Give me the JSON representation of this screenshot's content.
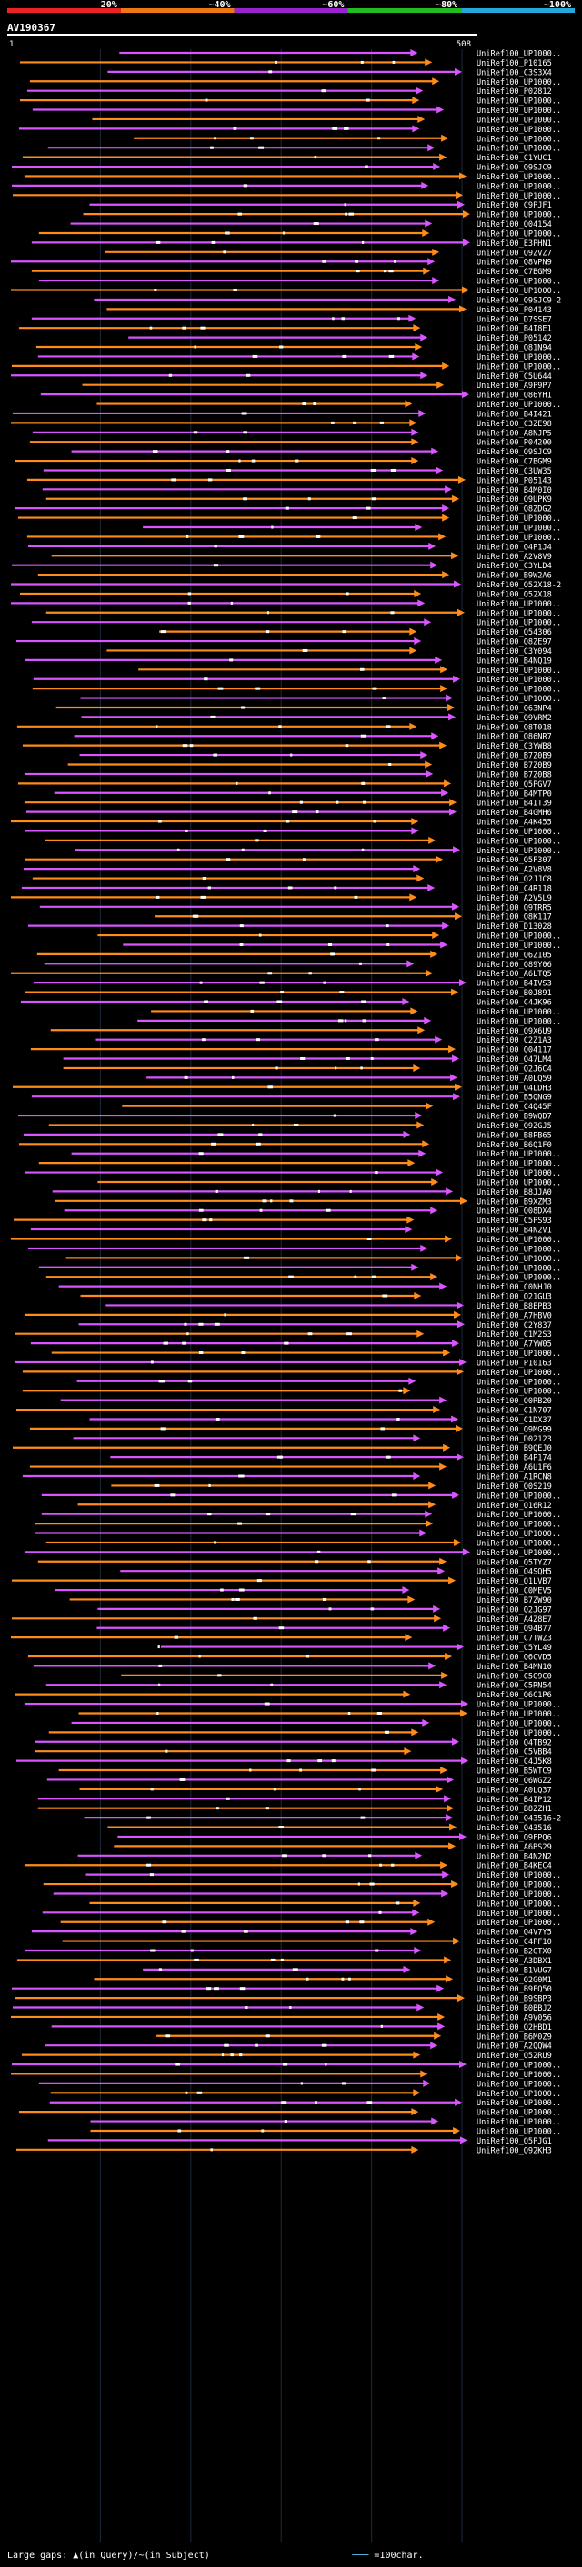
{
  "query_id": "AV190367",
  "chart_data": {
    "type": "alignment-overview",
    "query_length": 508,
    "axis_ticks": [
      "1",
      "508"
    ],
    "identity_legend": {
      "labels": [
        "20%",
        "~40%",
        "~60%",
        "~80%",
        "~100%"
      ],
      "colors": [
        "#ee2222",
        "#ee7711",
        "#9922cc",
        "#22bb22",
        "#22aadd"
      ]
    },
    "series_colors": {
      "orange": "#ff8c1a",
      "magenta": "#d855ff"
    },
    "hits": [
      "UniRef100_UP1000..",
      "UniRef100_P10165",
      "UniRef100_C3S3X4",
      "UniRef100_UP1000..",
      "UniRef100_P02812",
      "UniRef100_UP1000..",
      "UniRef100_UP1000..",
      "UniRef100_UP1000..",
      "UniRef100_UP1000..",
      "UniRef100_UP1000..",
      "UniRef100_UP1000..",
      "UniRef100_C1YUC1",
      "UniRef100_Q9SJC9",
      "UniRef100_UP1000..",
      "UniRef100_UP1000..",
      "UniRef100_UP1000..",
      "UniRef100_C9PJF1",
      "UniRef100_UP1000..",
      "UniRef100_Q04154",
      "UniRef100_UP1000..",
      "UniRef100_E3PHN1",
      "UniRef100_Q9ZVZ7",
      "UniRef100_Q8VPN9",
      "UniRef100_C7BGM9",
      "UniRef100_UP1000..",
      "UniRef100_UP1000..",
      "UniRef100_Q9SJC9-2",
      "UniRef100_P04143",
      "UniRef100_D7SSE7",
      "UniRef100_B4I8E1",
      "UniRef100_P05142",
      "UniRef100_Q81N94",
      "UniRef100_UP1000..",
      "UniRef100_UP1000..",
      "UniRef100_C5U644",
      "UniRef100_A9P9P7",
      "UniRef100_Q86YH1",
      "UniRef100_UP1000..",
      "UniRef100_B4I421",
      "UniRef100_C3ZE98",
      "UniRef100_A8NJP5",
      "UniRef100_P04200",
      "UniRef100_Q9SJC9",
      "UniRef100_C7BGM9",
      "UniRef100_C3UW35",
      "UniRef100_P05143",
      "UniRef100_B4M0I0",
      "UniRef100_Q9UPK9",
      "UniRef100_Q8ZDG2",
      "UniRef100_UP1000..",
      "UniRef100_UP1000..",
      "UniRef100_UP1000..",
      "UniRef100_Q4P1J4",
      "UniRef100_A2V8V9",
      "UniRef100_C3YLD4",
      "UniRef100_B9W2A6",
      "UniRef100_Q52X18-2",
      "UniRef100_Q52X18",
      "UniRef100_UP1000..",
      "UniRef100_UP1000..",
      "UniRef100_UP1000..",
      "UniRef100_Q54306",
      "UniRef100_Q8ZE97",
      "UniRef100_C3Y094",
      "UniRef100_B4NQ19",
      "UniRef100_UP1000..",
      "UniRef100_UP1000..",
      "UniRef100_UP1000..",
      "UniRef100_UP1000..",
      "UniRef100_Q63NP4",
      "UniRef100_Q9VRM2",
      "UniRef100_Q8T018",
      "UniRef100_Q86NR7",
      "UniRef100_C3YWB8",
      "UniRef100_B7Z0B9",
      "UniRef100_B7Z0B9",
      "UniRef100_B7Z0B8",
      "UniRef100_Q5PGV7",
      "UniRef100_B4MTP0",
      "UniRef100_B4IT39",
      "UniRef100_B4GMH6",
      "UniRef100_A4K455",
      "UniRef100_UP1000..",
      "UniRef100_UP1000..",
      "UniRef100_UP1000..",
      "UniRef100_Q5F307",
      "UniRef100_A2V8V8",
      "UniRef100_Q2JJC8",
      "UniRef100_C4R118",
      "UniRef100_A2V5L9",
      "UniRef100_Q9TRR5",
      "UniRef100_Q8K117",
      "UniRef100_D13028",
      "UniRef100_UP1000..",
      "UniRef100_UP1000..",
      "UniRef100_Q6Z105",
      "UniRef100_Q89Y06",
      "UniRef100_A6LTQ5",
      "UniRef100_B4IVS3",
      "UniRef100_B0J891",
      "UniRef100_C4JK96",
      "UniRef100_UP1000..",
      "UniRef100_UP1000..",
      "UniRef100_Q9X6U9",
      "UniRef100_C2Z1A3",
      "UniRef100_Q04117",
      "UniRef100_Q47LM4",
      "UniRef100_Q2J6C4",
      "UniRef100_A0LQ59",
      "UniRef100_Q4LDH3",
      "UniRef100_B5QNG9",
      "UniRef100_C4Q45F",
      "UniRef100_B9WQD7",
      "UniRef100_Q9ZGJ5",
      "UniRef100_B8PB65",
      "UniRef100_B6Q1F0",
      "UniRef100_UP1000..",
      "UniRef100_UP1000..",
      "UniRef100_UP1000..",
      "UniRef100_UP1000..",
      "UniRef100_B8JJA0",
      "UniRef100_B9XZM3",
      "UniRef100_Q08DX4",
      "UniRef100_C5PS93",
      "UniRef100_B4N2V1",
      "UniRef100_UP1000..",
      "UniRef100_UP1000..",
      "UniRef100_UP1000..",
      "UniRef100_UP1000..",
      "UniRef100_UP1000..",
      "UniRef100_C0NHJ0",
      "UniRef100_Q21GU3",
      "UniRef100_B8EPB3",
      "UniRef100_A7HBV0",
      "UniRef100_C2Y837",
      "UniRef100_C1M2S3",
      "UniRef100_A7YW05",
      "UniRef100_UP1000..",
      "UniRef100_P10163",
      "UniRef100_UP1000..",
      "UniRef100_UP1000..",
      "UniRef100_UP1000..",
      "UniRef100_Q0RB20",
      "UniRef100_C1N707",
      "UniRef100_C1DX37",
      "UniRef100_Q9MG99",
      "UniRef100_D02123",
      "UniRef100_B9QEJ0",
      "UniRef100_B4P174",
      "UniRef100_A6U1F6",
      "UniRef100_A1RCN8",
      "UniRef100_Q0S219",
      "UniRef100_UP1000..",
      "UniRef100_Q16R12",
      "UniRef100_UP1000..",
      "UniRef100_UP1000..",
      "UniRef100_UP1000..",
      "UniRef100_UP1000..",
      "UniRef100_UP1000..",
      "UniRef100_Q5TYZ7",
      "UniRef100_Q4SQH5",
      "UniRef100_Q1LVB7",
      "UniRef100_C0MEV5",
      "UniRef100_B7ZW90",
      "UniRef100_Q2JG97",
      "UniRef100_A4Z8E7",
      "UniRef100_Q94B77",
      "UniRef100_C7TWZ3",
      "UniRef100_C5YL49",
      "UniRef100_Q6CVD5",
      "UniRef100_B4MN10",
      "UniRef100_C5G9C0",
      "UniRef100_C5RN54",
      "UniRef100_Q6C1P6",
      "UniRef100_UP1000..",
      "UniRef100_UP1000..",
      "UniRef100_UP1000..",
      "UniRef100_UP1000..",
      "UniRef100_Q4TB92",
      "UniRef100_C5VBB4",
      "UniRef100_C4J5K8",
      "UniRef100_B5WTC9",
      "UniRef100_Q6WGZ2",
      "UniRef100_A0LQ37",
      "UniRef100_B4IP12",
      "UniRef100_B8ZZH1",
      "UniRef100_Q43516-2",
      "UniRef100_Q43516",
      "UniRef100_Q9FPQ6",
      "UniRef100_A6BS29",
      "UniRef100_B4N2N2",
      "UniRef100_B4KEC4",
      "UniRef100_UP1000..",
      "UniRef100_UP1000..",
      "UniRef100_UP1000..",
      "UniRef100_UP1000..",
      "UniRef100_UP1000..",
      "UniRef100_UP1000..",
      "UniRef100_Q4V7Y5",
      "UniRef100_C4PF10",
      "UniRef100_B2GTX0",
      "UniRef100_A3DBX1",
      "UniRef100_B1VUG7",
      "UniRef100_Q2G0M1",
      "UniRef100_B9FQ50",
      "UniRef100_B9SBP3",
      "UniRef100_B0BBJ2",
      "UniRef100_A9V056",
      "UniRef100_Q2HBD1",
      "UniRef100_B6M0Z9",
      "UniRef100_A2QQW4",
      "UniRef100_Q52RU9",
      "UniRef100_UP1000..",
      "UniRef100_UP1000..",
      "UniRef100_UP1000..",
      "UniRef100_UP1000..",
      "UniRef100_UP1000..",
      "UniRef100_UP1000..",
      "UniRef100_UP1000..",
      "UniRef100_UP1000..",
      "UniRef100_Q5PJG1",
      "UniRef100_Q92KH3"
    ]
  },
  "footer": {
    "gaps_text": "Large gaps: ▲(in Query)/~(in Subject)",
    "scale_text": "=100char."
  }
}
